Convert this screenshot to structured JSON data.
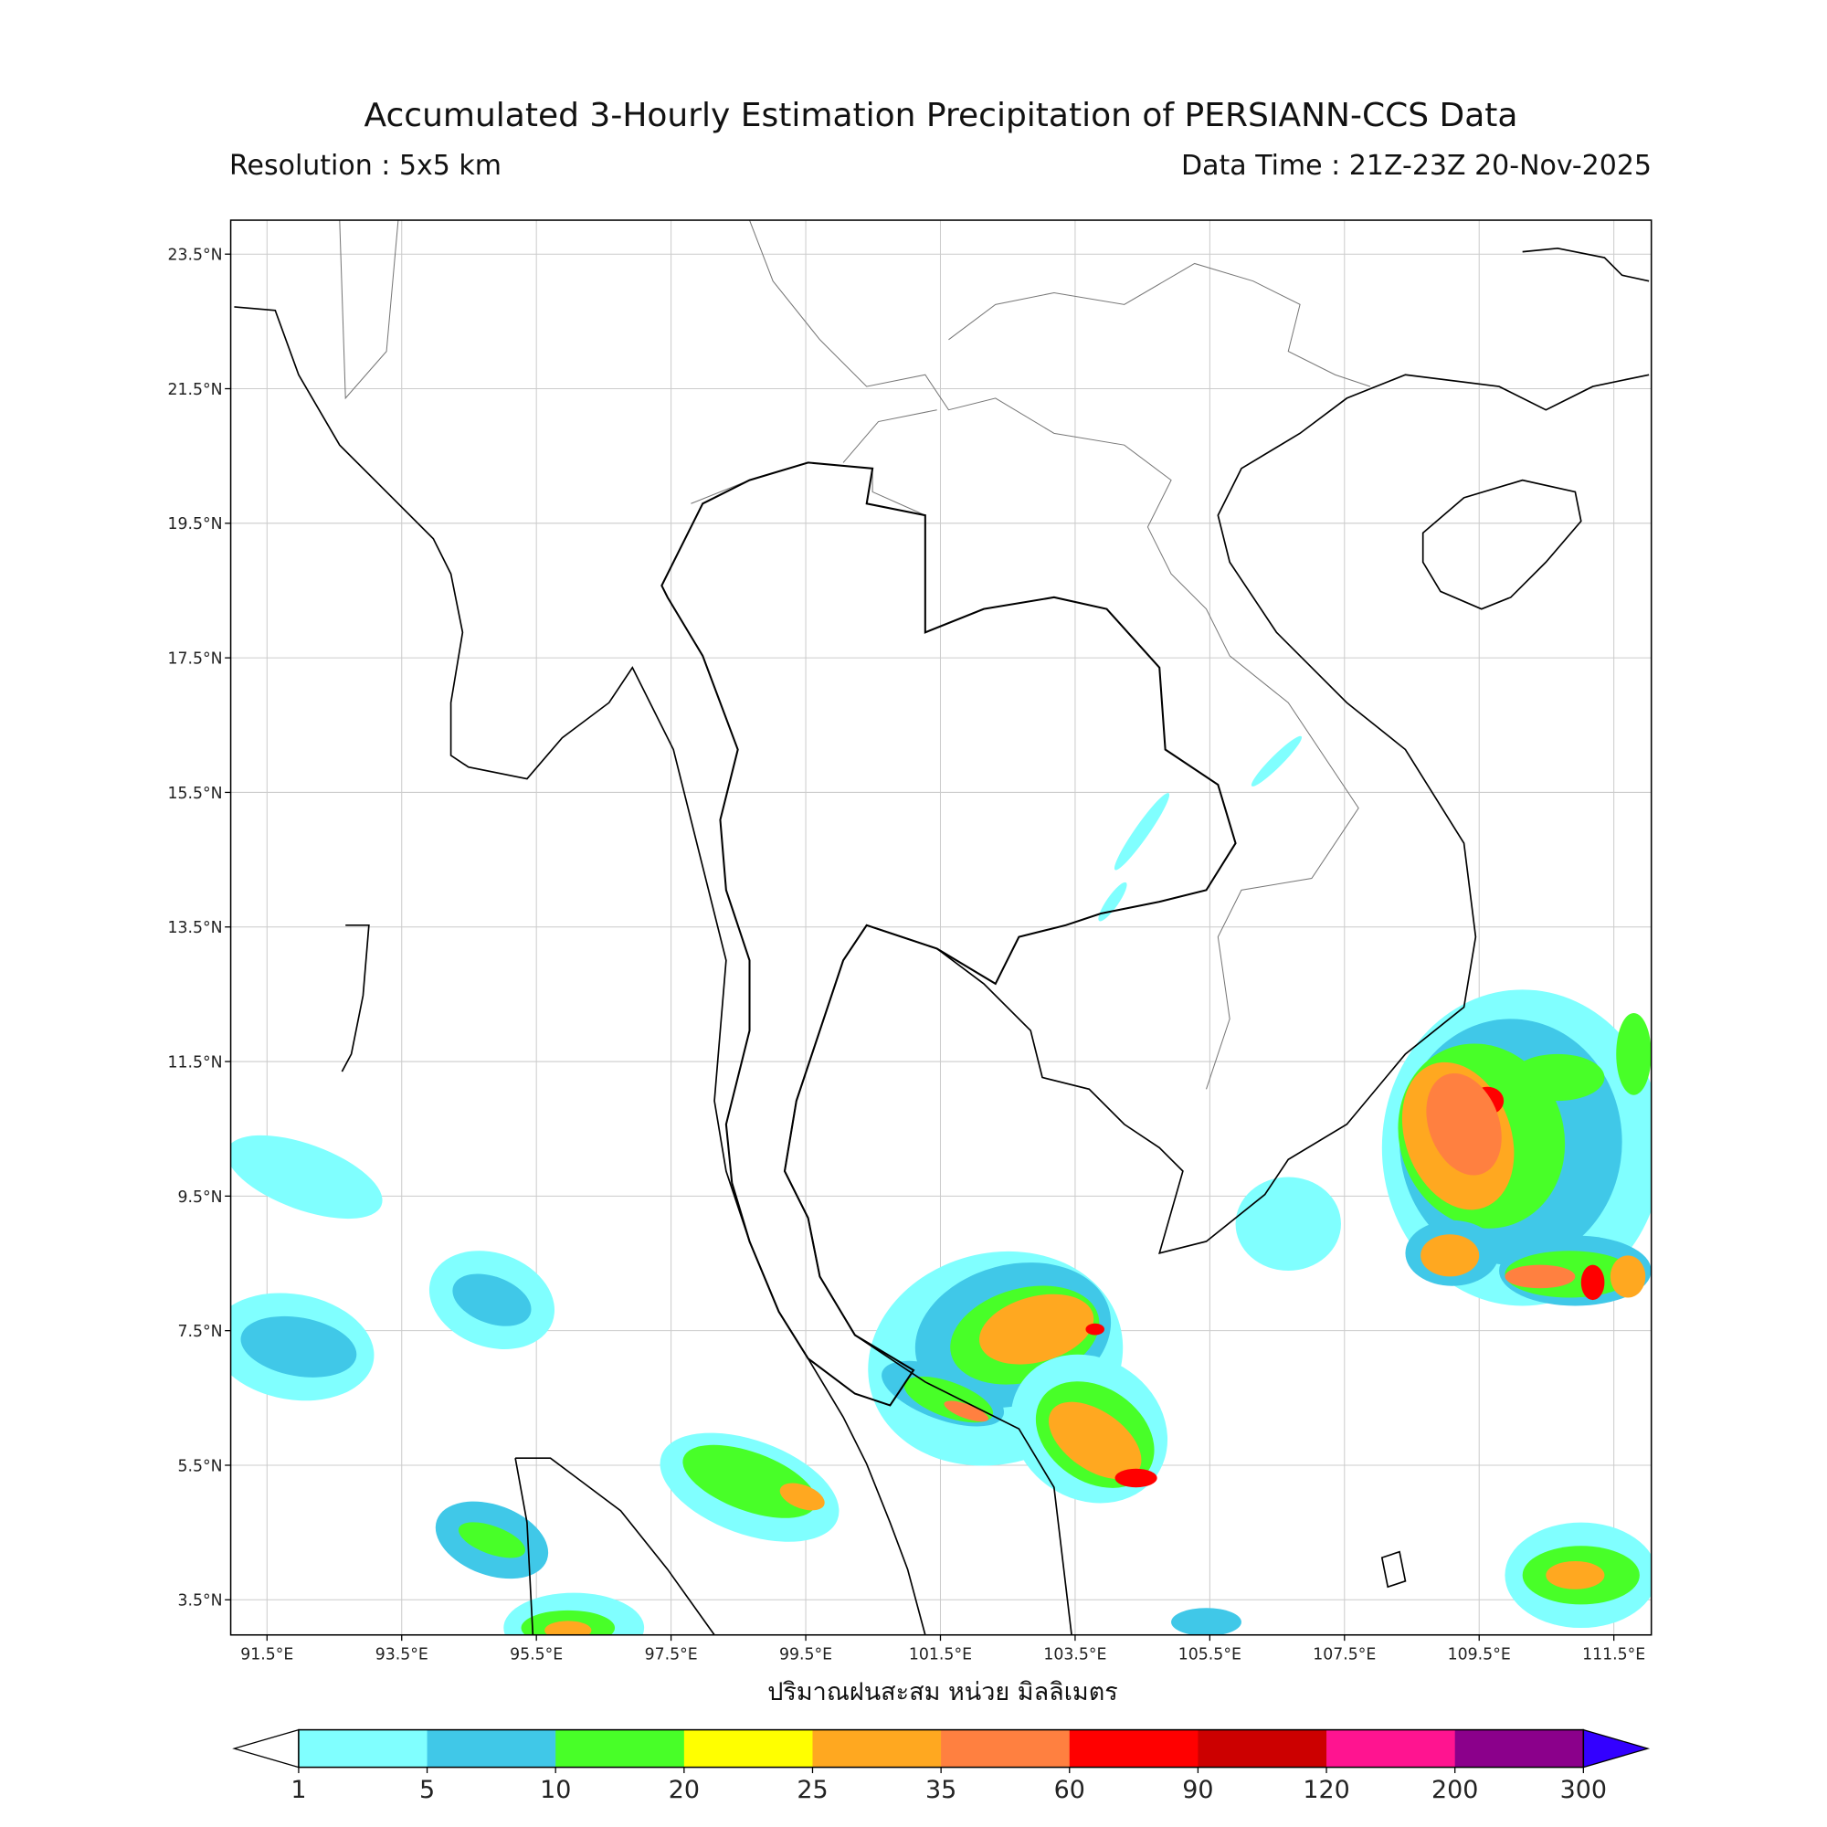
{
  "header": {
    "title": "Accumulated 3-Hourly Estimation Precipitation of PERSIANN-CCS Data",
    "resolution": "Resolution : 5x5 km",
    "data_time": "Data Time : 21Z-23Z 20-Nov-2025"
  },
  "map": {
    "lat_ticks": [
      "23.5°N",
      "21.5°N",
      "19.5°N",
      "17.5°N",
      "15.5°N",
      "13.5°N",
      "11.5°N",
      "9.5°N",
      "7.5°N",
      "5.5°N",
      "3.5°N"
    ],
    "lon_ticks": [
      "91.5°E",
      "93.5°E",
      "95.5°E",
      "97.5°E",
      "99.5°E",
      "101.5°E",
      "103.5°E",
      "105.5°E",
      "107.5°E",
      "109.5°E",
      "111.5°E"
    ],
    "xlabel": "ปริมาณฝนสะสม หน่วย มิลลิเมตร"
  },
  "colorbar": {
    "levels": [
      "1",
      "5",
      "10",
      "20",
      "25",
      "35",
      "60",
      "90",
      "120",
      "200",
      "300"
    ],
    "colors": [
      "#80ffff",
      "#40c8e8",
      "#48ff28",
      "#ffff00",
      "#ffa820",
      "#ff8040",
      "#ff0000",
      "#cc0000",
      "#ff1490",
      "#8b008b"
    ],
    "under_color": "#ffffff",
    "over_color": "#3300ff"
  }
}
